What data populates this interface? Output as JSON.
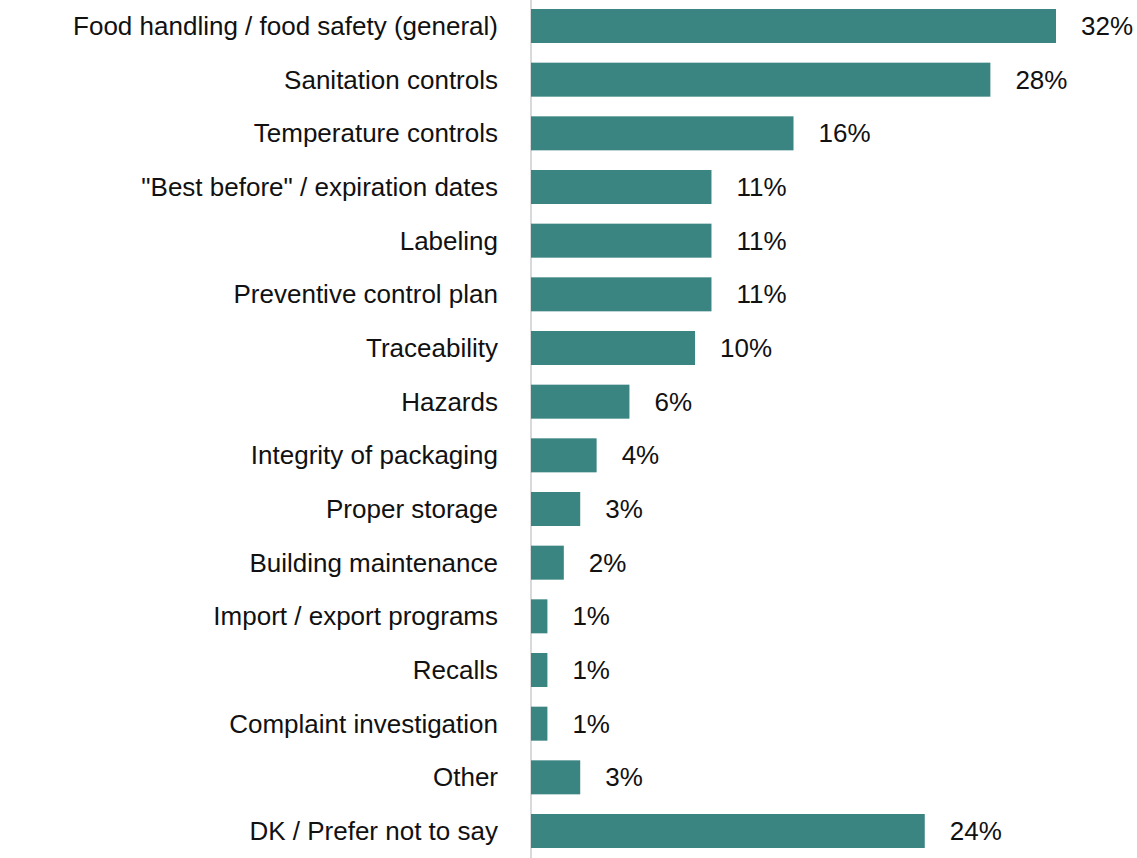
{
  "chart_data": {
    "type": "bar",
    "orientation": "horizontal",
    "categories": [
      "Food handling / food safety (general)",
      "Sanitation controls",
      "Temperature controls",
      "\"Best before\" / expiration dates",
      "Labeling",
      "Preventive control plan",
      "Traceability",
      "Hazards",
      "Integrity of packaging",
      "Proper storage",
      "Building maintenance",
      "Import / export programs",
      "Recalls",
      "Complaint investigation",
      "Other",
      "DK / Prefer not to say"
    ],
    "values": [
      32,
      28,
      16,
      11,
      11,
      11,
      10,
      6,
      4,
      3,
      2,
      1,
      1,
      1,
      3,
      24
    ],
    "value_labels": [
      "32%",
      "28%",
      "16%",
      "11%",
      "11%",
      "11%",
      "10%",
      "6%",
      "4%",
      "3%",
      "2%",
      "1%",
      "1%",
      "1%",
      "3%",
      "24%"
    ],
    "color": "#3a8481",
    "xlim": [
      0,
      32
    ],
    "data_labels": true,
    "tick_labels": "y",
    "grid": false
  }
}
